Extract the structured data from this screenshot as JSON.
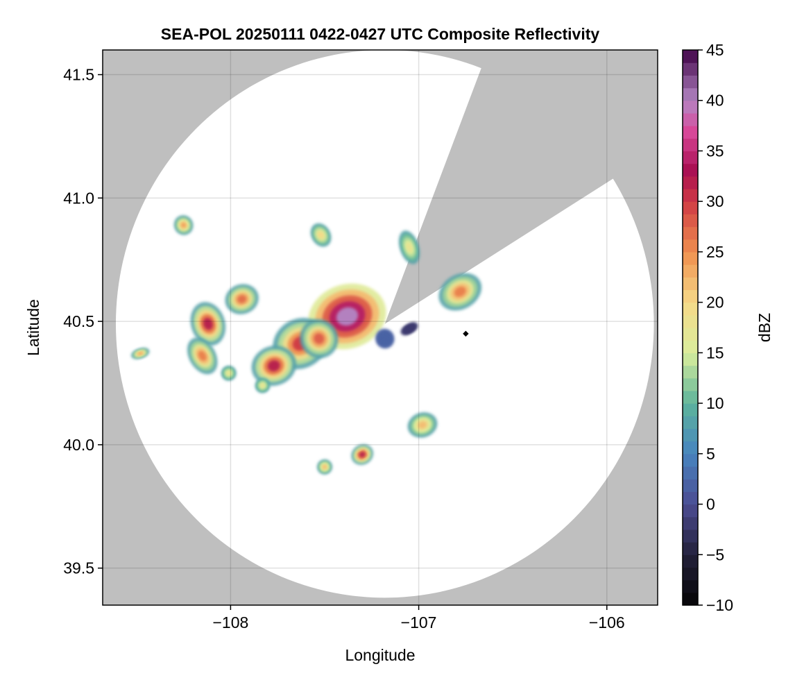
{
  "chart_data": {
    "type": "heatmap",
    "title": "SEA-POL 20250111 0422-0427 UTC Composite Reflectivity",
    "xlabel": "Longitude",
    "ylabel": "Latitude",
    "xlim": [
      -108.68,
      -105.73
    ],
    "ylim": [
      39.35,
      41.6
    ],
    "x_ticks": [
      -108,
      -107,
      -106
    ],
    "x_tick_labels": [
      "−108",
      "−107",
      "−106"
    ],
    "y_ticks": [
      39.5,
      40.0,
      40.5,
      41.0,
      41.5
    ],
    "y_tick_labels": [
      "39.5",
      "40.0",
      "40.5",
      "41.0",
      "41.5"
    ],
    "grid": true,
    "radar": {
      "center_lon": -107.18,
      "center_lat": 40.49,
      "range_lon": 1.43,
      "range_lat": 1.11,
      "blocked_sector_bearing_deg": [
        21,
        58
      ]
    },
    "colorbar": {
      "label": "dBZ",
      "range": [
        -10,
        45
      ],
      "ticks": [
        -10,
        -5,
        0,
        5,
        10,
        15,
        20,
        25,
        30,
        35,
        40,
        45
      ],
      "tick_labels": [
        "−10",
        "−5",
        "0",
        "5",
        "10",
        "15",
        "20",
        "25",
        "30",
        "35",
        "40",
        "45"
      ],
      "placement": "right"
    },
    "cells": [
      {
        "lon": -107.38,
        "lat": 40.52,
        "rlon": 0.21,
        "rlat": 0.13,
        "peak_dbz": 40
      },
      {
        "lon": -107.63,
        "lat": 40.41,
        "rlon": 0.15,
        "rlat": 0.1,
        "peak_dbz": 30
      },
      {
        "lon": -107.77,
        "lat": 40.32,
        "rlon": 0.12,
        "rlat": 0.08,
        "peak_dbz": 32
      },
      {
        "lon": -107.53,
        "lat": 40.43,
        "rlon": 0.1,
        "rlat": 0.08,
        "peak_dbz": 28
      },
      {
        "lon": -108.12,
        "lat": 40.49,
        "rlon": 0.09,
        "rlat": 0.09,
        "peak_dbz": 32
      },
      {
        "lon": -108.15,
        "lat": 40.36,
        "rlon": 0.07,
        "rlat": 0.08,
        "peak_dbz": 26
      },
      {
        "lon": -107.94,
        "lat": 40.59,
        "rlon": 0.09,
        "rlat": 0.06,
        "peak_dbz": 27
      },
      {
        "lon": -108.25,
        "lat": 40.89,
        "rlon": 0.05,
        "rlat": 0.04,
        "peak_dbz": 24
      },
      {
        "lon": -108.48,
        "lat": 40.37,
        "rlon": 0.05,
        "rlat": 0.02,
        "peak_dbz": 24
      },
      {
        "lon": -107.52,
        "lat": 40.85,
        "rlon": 0.05,
        "rlat": 0.05,
        "peak_dbz": 20
      },
      {
        "lon": -107.05,
        "lat": 40.8,
        "rlon": 0.05,
        "rlat": 0.07,
        "peak_dbz": 18
      },
      {
        "lon": -106.78,
        "lat": 40.62,
        "rlon": 0.12,
        "rlat": 0.07,
        "peak_dbz": 26
      },
      {
        "lon": -106.98,
        "lat": 40.08,
        "rlon": 0.08,
        "rlat": 0.05,
        "peak_dbz": 22
      },
      {
        "lon": -107.3,
        "lat": 39.96,
        "rlon": 0.06,
        "rlat": 0.04,
        "peak_dbz": 32
      },
      {
        "lon": -107.5,
        "lat": 39.91,
        "rlon": 0.04,
        "rlat": 0.03,
        "peak_dbz": 22
      },
      {
        "lon": -107.83,
        "lat": 40.24,
        "rlon": 0.04,
        "rlat": 0.03,
        "peak_dbz": 18
      },
      {
        "lon": -108.01,
        "lat": 40.29,
        "rlon": 0.04,
        "rlat": 0.03,
        "peak_dbz": 18
      },
      {
        "lon": -107.05,
        "lat": 40.47,
        "rlon": 0.05,
        "rlat": 0.02,
        "peak_dbz": -2
      },
      {
        "lon": -107.18,
        "lat": 40.43,
        "rlon": 0.05,
        "rlat": 0.04,
        "peak_dbz": 2
      }
    ],
    "points": [
      {
        "lon": -106.75,
        "lat": 40.45,
        "dbz": -10
      }
    ]
  }
}
